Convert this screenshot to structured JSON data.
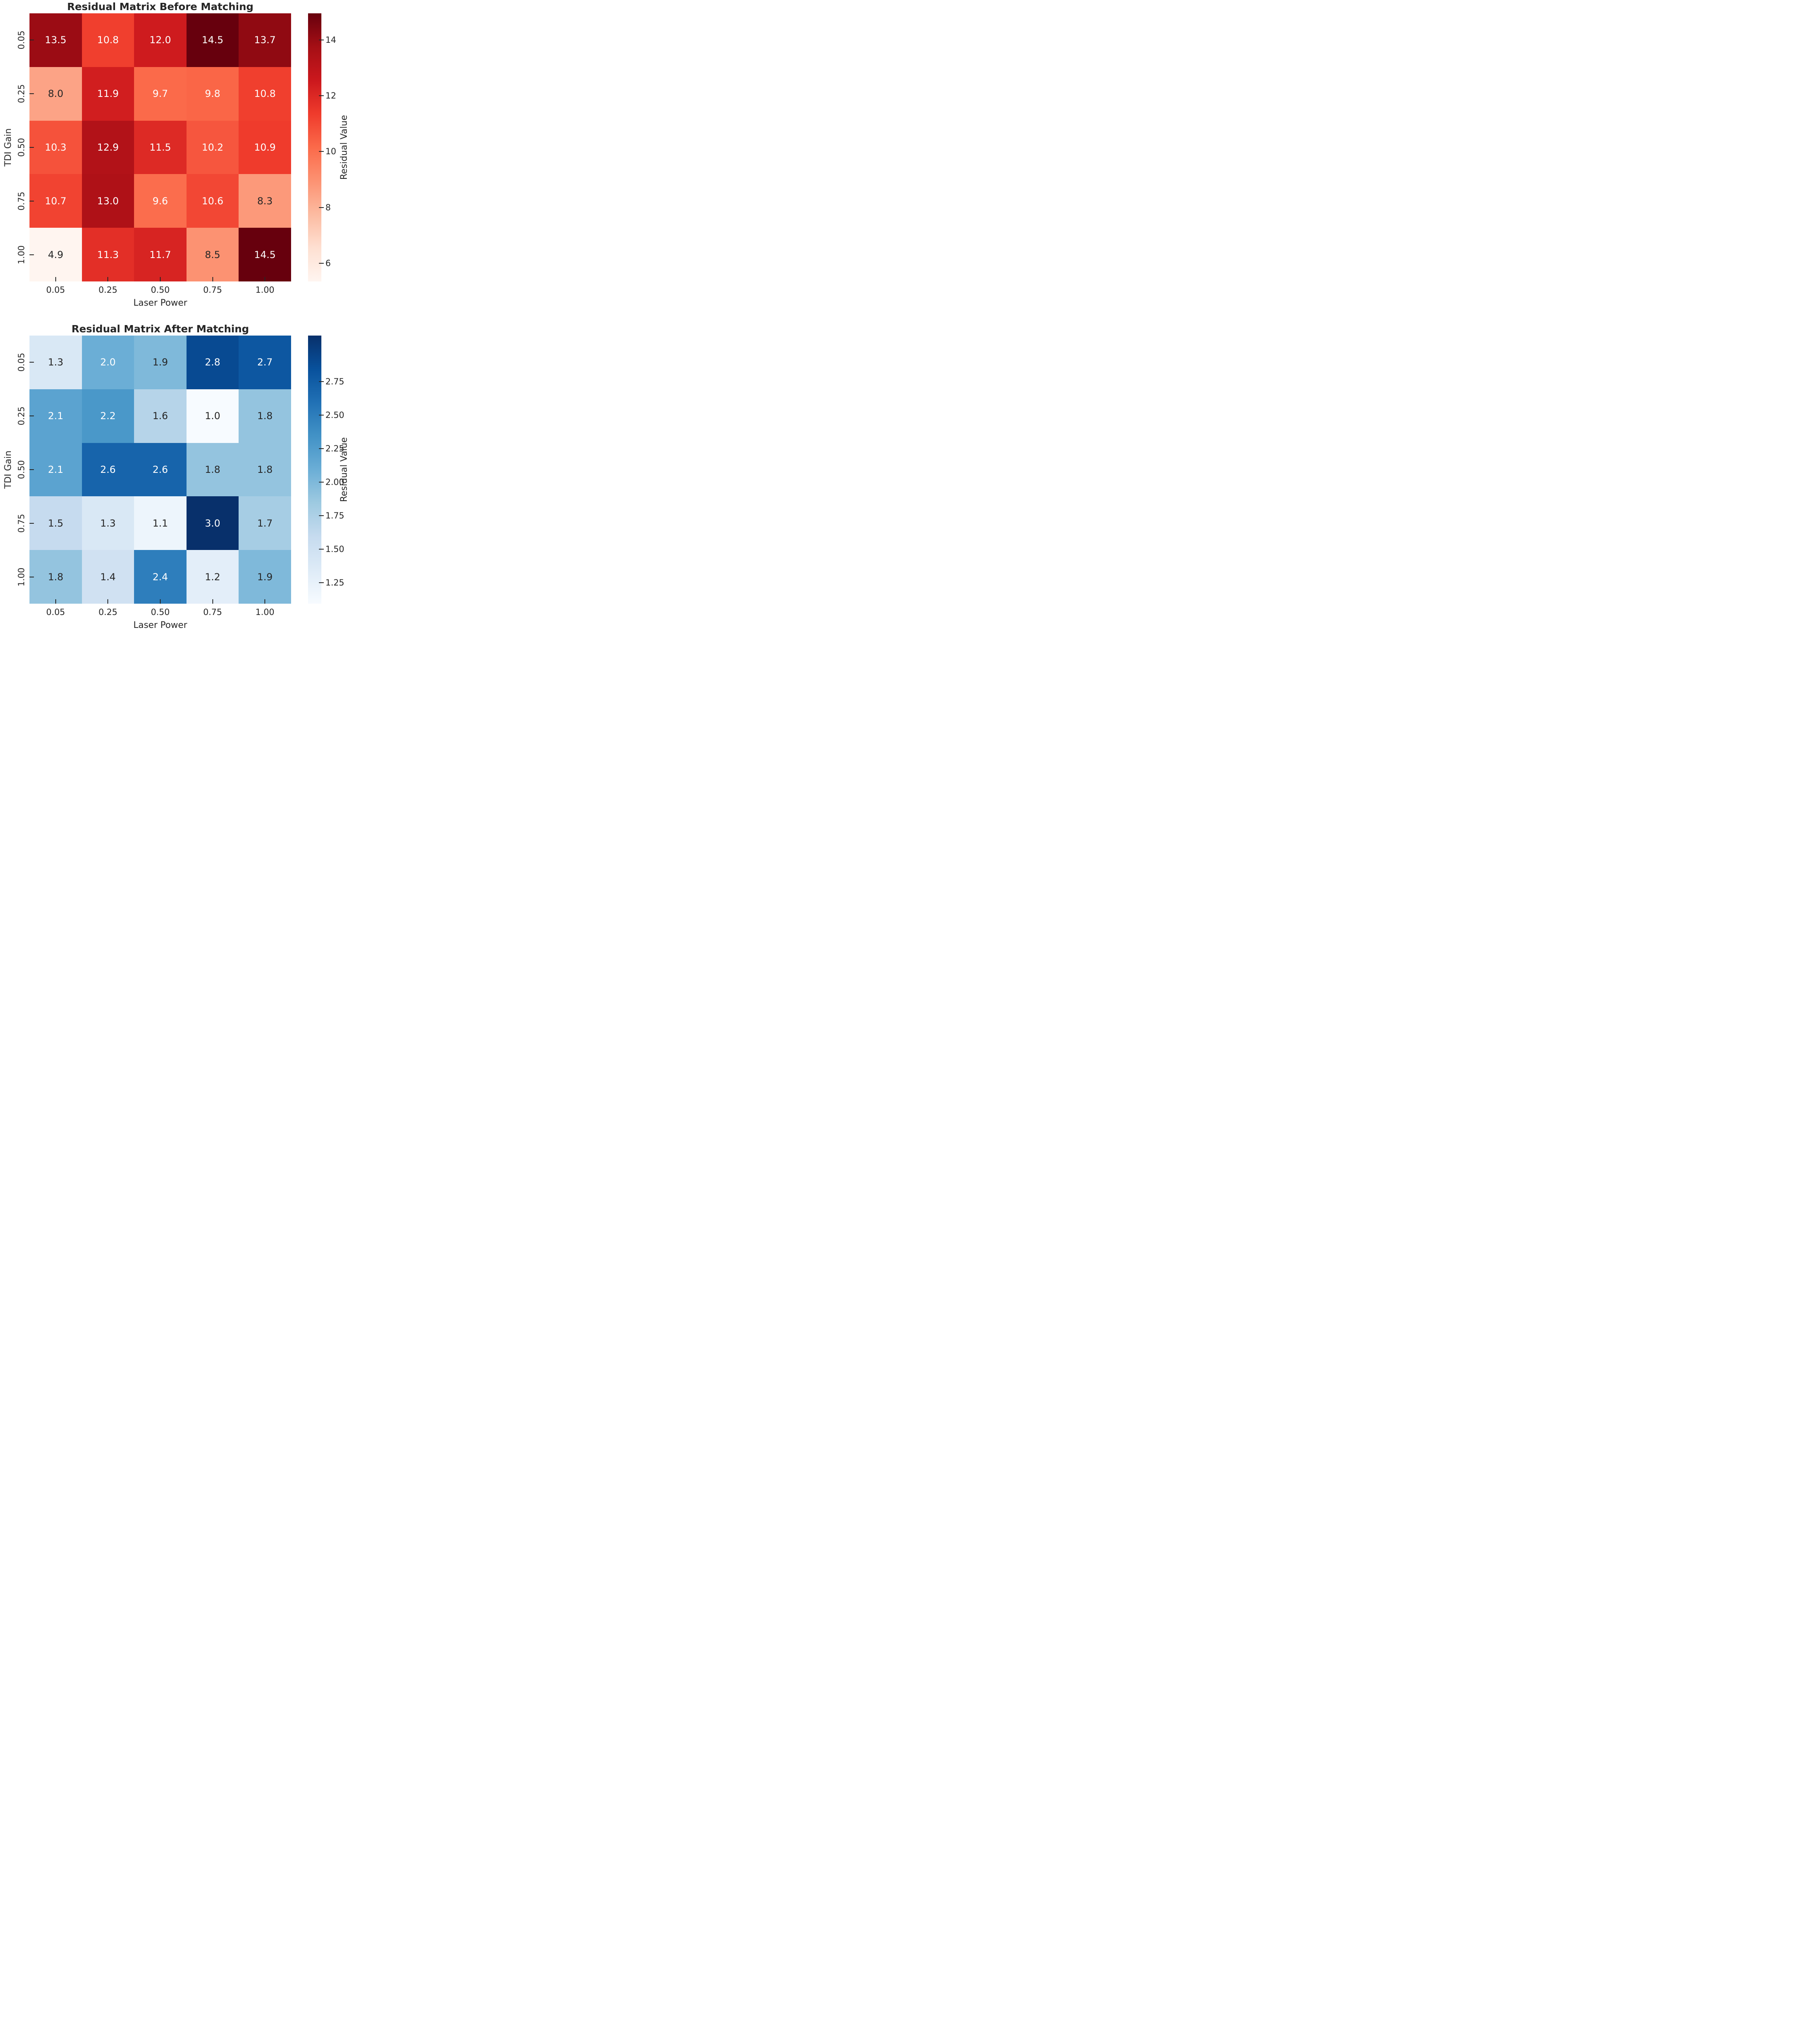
{
  "colors": {
    "background": "#ffffff",
    "text_dark": "#262626",
    "text_light": "#ffffff",
    "colormaps": {
      "Reds": [
        "#fff5f0",
        "#fee0d2",
        "#fcbba1",
        "#fc9272",
        "#fb6a4a",
        "#ef3b2c",
        "#cb181d",
        "#a50f15",
        "#67000d"
      ],
      "Blues": [
        "#f7fbff",
        "#deebf7",
        "#c6dbef",
        "#9ecae1",
        "#6baed6",
        "#4292c6",
        "#2171b5",
        "#08519c",
        "#08306b"
      ]
    }
  },
  "chart_data": [
    {
      "type": "heatmap",
      "title": "Residual Matrix Before Matching",
      "xlabel": "Laser Power",
      "ylabel": "TDI Gain",
      "x_ticklabels": [
        "0.05",
        "0.25",
        "0.50",
        "0.75",
        "1.00"
      ],
      "y_ticklabels": [
        "0.05",
        "0.25",
        "0.50",
        "0.75",
        "1.00"
      ],
      "values": [
        [
          13.5,
          10.8,
          12.0,
          14.5,
          13.7
        ],
        [
          8.0,
          11.9,
          9.7,
          9.8,
          10.8
        ],
        [
          10.3,
          12.9,
          11.5,
          10.2,
          10.9
        ],
        [
          10.7,
          13.0,
          9.6,
          10.6,
          8.3
        ],
        [
          4.9,
          11.3,
          11.7,
          8.5,
          14.5
        ]
      ],
      "value_decimals": 1,
      "colormap": "Reds",
      "vmin": 4.9,
      "vmax": 14.5,
      "grid": false,
      "colorbar_label": "Residual Value",
      "colorbar_ticks": [
        {
          "value": 14,
          "label": "14"
        },
        {
          "value": 12,
          "label": "12"
        },
        {
          "value": 10,
          "label": "10"
        },
        {
          "value": 8,
          "label": "8"
        },
        {
          "value": 6,
          "label": "6"
        }
      ]
    },
    {
      "type": "heatmap",
      "title": "Residual Matrix After Matching",
      "xlabel": "Laser Power",
      "ylabel": "TDI Gain",
      "x_ticklabels": [
        "0.05",
        "0.25",
        "0.50",
        "0.75",
        "1.00"
      ],
      "y_ticklabels": [
        "0.05",
        "0.25",
        "0.50",
        "0.75",
        "1.00"
      ],
      "values": [
        [
          1.3,
          2.0,
          1.9,
          2.8,
          2.7
        ],
        [
          2.1,
          2.2,
          1.6,
          1.0,
          1.8
        ],
        [
          2.1,
          2.6,
          2.6,
          1.8,
          1.8
        ],
        [
          1.5,
          1.3,
          1.1,
          3.0,
          1.7
        ],
        [
          1.8,
          1.4,
          2.4,
          1.2,
          1.9
        ]
      ],
      "value_decimals": 1,
      "colormap": "Blues",
      "vmin": 1.0,
      "vmax": 3.0,
      "grid": false,
      "colorbar_label": "Residual Value",
      "colorbar_ticks": [
        {
          "value": 2.75,
          "label": "2.75"
        },
        {
          "value": 2.5,
          "label": "2.50"
        },
        {
          "value": 2.25,
          "label": "2.25"
        },
        {
          "value": 2.0,
          "label": "2.00"
        },
        {
          "value": 1.75,
          "label": "1.75"
        },
        {
          "value": 1.5,
          "label": "1.50"
        },
        {
          "value": 1.25,
          "label": "1.25"
        }
      ]
    }
  ]
}
